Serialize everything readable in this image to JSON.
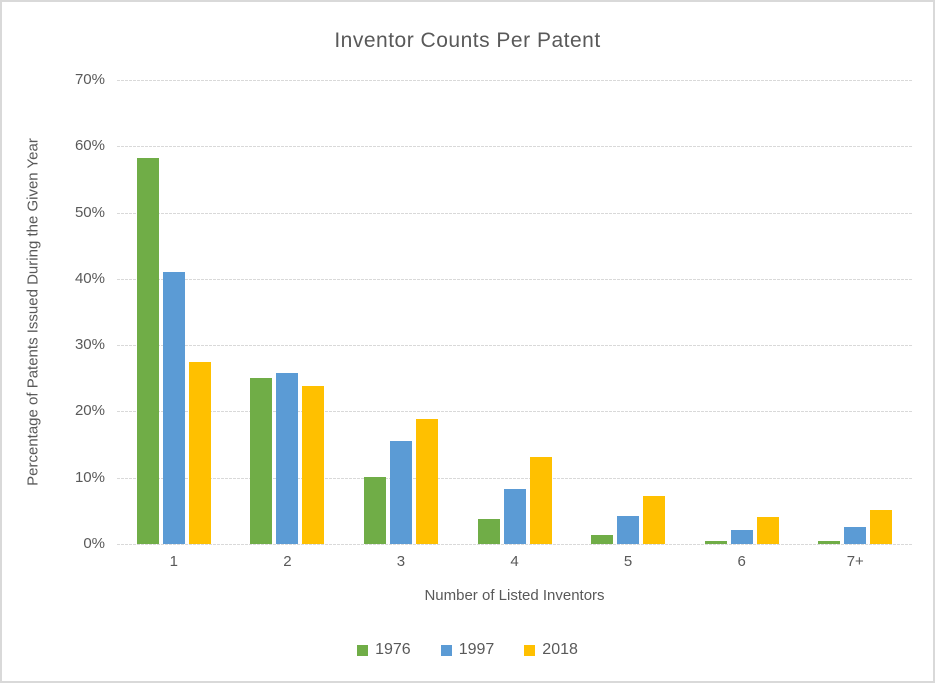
{
  "window": {
    "background_color": "#FFFFFF",
    "border_color": "#D9D9D9",
    "text_color": "#595959"
  },
  "chart_data": {
    "type": "bar",
    "title": "Inventor Counts Per Patent",
    "xlabel": "Number of Listed Inventors",
    "ylabel": "Percentage of Patents Issued During the Given Year",
    "categories": [
      "1",
      "2",
      "3",
      "4",
      "5",
      "6",
      "7+"
    ],
    "series": [
      {
        "name": "1976",
        "color": "#70AD47",
        "values": [
          58.3,
          25.1,
          10.1,
          3.7,
          1.4,
          0.5,
          0.5
        ]
      },
      {
        "name": "1997",
        "color": "#5B9BD5",
        "values": [
          41.0,
          25.8,
          15.5,
          8.3,
          4.2,
          2.1,
          2.5
        ]
      },
      {
        "name": "2018",
        "color": "#FFC000",
        "values": [
          27.5,
          23.9,
          18.8,
          13.2,
          7.3,
          4.1,
          5.1
        ]
      }
    ],
    "ylim": [
      0,
      70
    ],
    "y_tick_step": 10,
    "y_tick_suffix": "%",
    "y_tick_labels": [
      "0%",
      "10%",
      "20%",
      "30%",
      "40%",
      "50%",
      "60%",
      "70%"
    ],
    "grid": true,
    "grid_color": "#D9D9D9",
    "legend_position": "bottom"
  }
}
